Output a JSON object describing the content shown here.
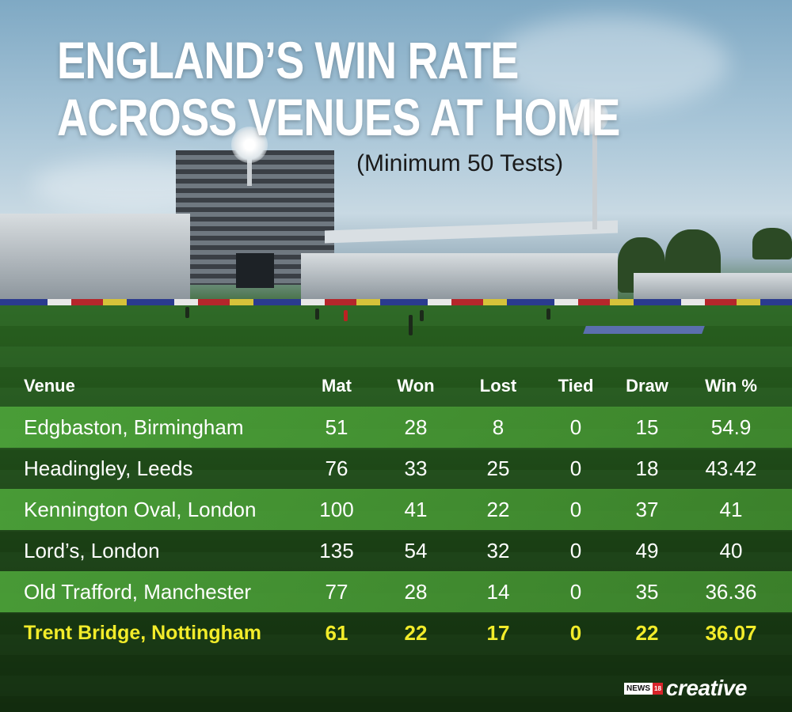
{
  "title_line1": "ENGLAND’S WIN RATE",
  "title_line2": "ACROSS VENUES AT HOME",
  "subtitle": "(Minimum 50 Tests)",
  "columns": {
    "venue": "Venue",
    "mat": "Mat",
    "won": "Won",
    "lost": "Lost",
    "tied": "Tied",
    "draw": "Draw",
    "win_pct": "Win %"
  },
  "rows": [
    {
      "venue": "Edgbaston, Birmingham",
      "mat": "51",
      "won": "28",
      "lost": "8",
      "tied": "0",
      "draw": "15",
      "win_pct": "54.9"
    },
    {
      "venue": "Headingley, Leeds",
      "mat": "76",
      "won": "33",
      "lost": "25",
      "tied": "0",
      "draw": "18",
      "win_pct": "43.42"
    },
    {
      "venue": "Kennington Oval, London",
      "mat": "100",
      "won": "41",
      "lost": "22",
      "tied": "0",
      "draw": "37",
      "win_pct": "41"
    },
    {
      "venue": "Lord’s, London",
      "mat": "135",
      "won": "54",
      "lost": "32",
      "tied": "0",
      "draw": "49",
      "win_pct": "40"
    },
    {
      "venue": "Old Trafford, Manchester",
      "mat": "77",
      "won": "28",
      "lost": "14",
      "tied": "0",
      "draw": "35",
      "win_pct": "36.36"
    },
    {
      "venue": "Trent Bridge, Nottingham",
      "mat": "61",
      "won": "22",
      "lost": "17",
      "tied": "0",
      "draw": "22",
      "win_pct": "36.07"
    }
  ],
  "brand": {
    "news": "NEWS",
    "eighteen": "18",
    "creative": "creative"
  },
  "colors": {
    "highlight_text": "#f2ec2a",
    "band_green": "#4caa3c",
    "title_text": "#ffffff"
  }
}
